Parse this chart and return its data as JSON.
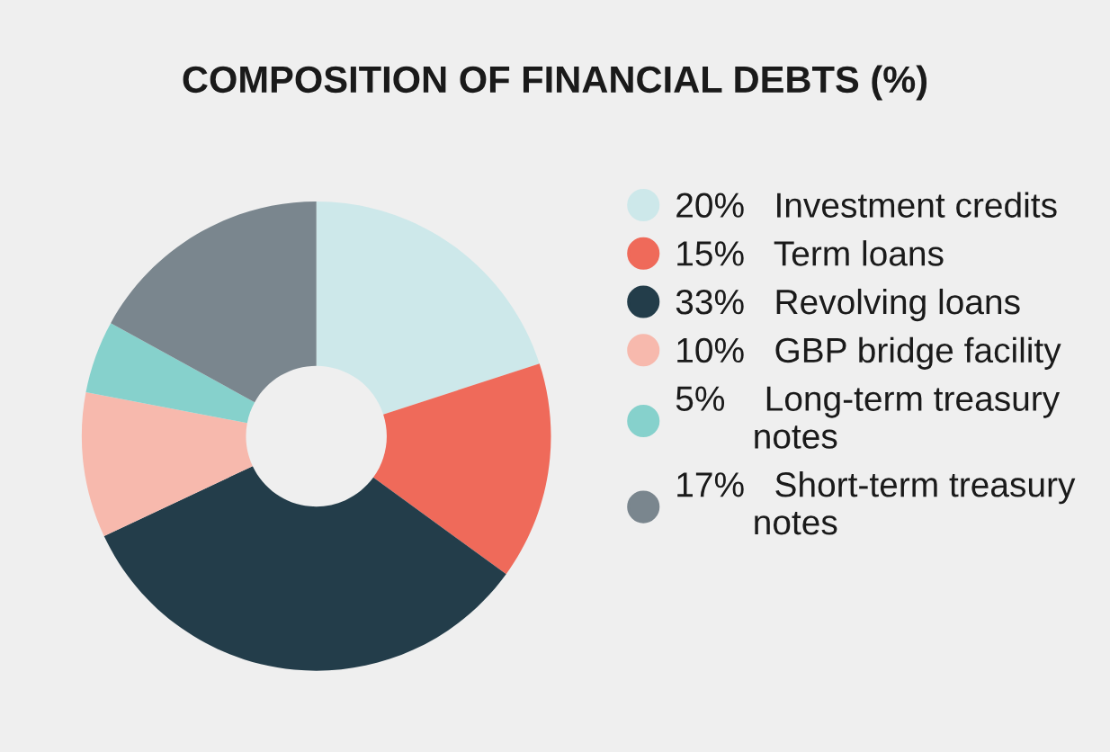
{
  "chart_data": {
    "type": "donut",
    "title": "COMPOSITION OF FINANCIAL DEBTS (%)",
    "categories": [
      "Investment credits",
      "Term loans",
      "Revolving loans",
      "GBP bridge facility",
      "Long-term treasury notes",
      "Short-term treasury notes"
    ],
    "values": [
      20,
      15,
      33,
      10,
      5,
      17
    ],
    "value_labels": [
      "20%",
      "15%",
      "33%",
      "10%",
      "5%",
      "17%"
    ],
    "colors": [
      "#cde8ea",
      "#ef6a5a",
      "#233d4a",
      "#f7b9ad",
      "#86d1cc",
      "#7a868e"
    ],
    "legend": "right"
  }
}
